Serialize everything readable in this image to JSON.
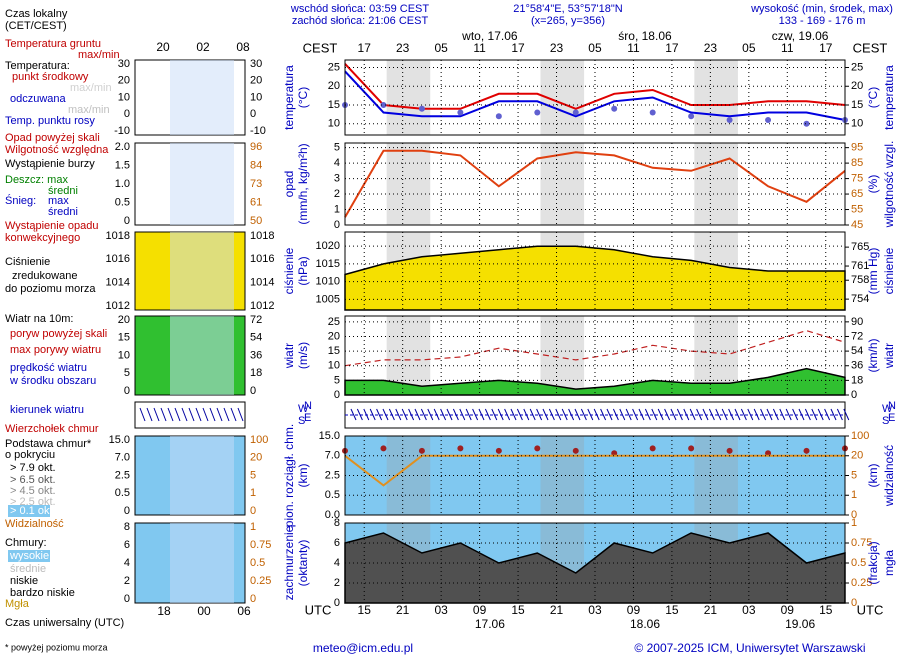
{
  "header": {
    "sunrise": "wschód słońca: 03:59 CEST",
    "sunset": "zachód słońca: 21:06 CEST",
    "coords": "21°58'4\"E, 53°57'18\"N",
    "grid": "(x=265, y=356)",
    "height_label": "wysokość (min, środek, max)",
    "heights": "133 - 169 - 176 m"
  },
  "top_axis": {
    "zone": "CEST",
    "ticks": [
      "17",
      "23",
      "05",
      "11",
      "17",
      "23",
      "05",
      "11",
      "17",
      "23",
      "05",
      "11",
      "17"
    ],
    "dates": [
      "wto, 17.06",
      "śro, 18.06",
      "czw, 19.06"
    ]
  },
  "bottom_axis": {
    "zone": "UTC",
    "ticks": [
      "15",
      "21",
      "03",
      "09",
      "15",
      "21",
      "03",
      "09",
      "15",
      "21",
      "03",
      "09",
      "15"
    ],
    "dates": [
      "17.06",
      "18.06",
      "19.06"
    ]
  },
  "x_hours": [
    0,
    6,
    12,
    18,
    24,
    30,
    36,
    42,
    48,
    54,
    60,
    66,
    72,
    78
  ],
  "panels": [
    {
      "left_label": [
        "temperatura",
        "(°C)"
      ],
      "right_label": [
        "(°C)",
        "temperatura"
      ],
      "bg": "#ffffff",
      "ylim": [
        7,
        27
      ],
      "yticks": [
        10,
        15,
        20,
        25
      ],
      "y2lim": [
        7,
        27
      ],
      "y2ticks": [
        10,
        15,
        20,
        25
      ],
      "series": [
        {
          "style": "line",
          "color": "#e00000",
          "values": [
            26,
            15,
            14,
            14,
            18,
            18,
            14,
            18,
            19,
            15,
            15,
            16,
            16,
            15
          ]
        },
        {
          "style": "line",
          "color": "#0000e0",
          "values": [
            24,
            13,
            12,
            12,
            16,
            16,
            12,
            16,
            17,
            13,
            12,
            13,
            13,
            11
          ]
        },
        {
          "style": "dots",
          "color": "#6060d0",
          "values": [
            15,
            15,
            14,
            13,
            12,
            13,
            13,
            14,
            13,
            12,
            11,
            11,
            10,
            11
          ]
        }
      ]
    },
    {
      "left_label": [
        "opad",
        "(mm/h, kg/m²h)"
      ],
      "right_label": [
        "(%)",
        "wilgotność wzgl."
      ],
      "bg": "#ffffff",
      "ylim": [
        0,
        5.3
      ],
      "yticks": [
        0,
        1,
        2,
        3,
        4,
        5
      ],
      "y2lim": [
        45,
        98
      ],
      "y2ticks": [
        45,
        55,
        65,
        75,
        85,
        95
      ],
      "series": [
        {
          "style": "line",
          "color": "#e04010",
          "axis": "y2",
          "values": [
            50,
            93,
            93,
            90,
            70,
            88,
            92,
            90,
            82,
            80,
            88,
            70,
            60,
            80
          ]
        }
      ]
    },
    {
      "left_label": [
        "ciśnienie",
        "(hPa)"
      ],
      "right_label": [
        "(mm Hg)",
        "ciśnienie"
      ],
      "bg": "#ffffff",
      "ylim": [
        1002,
        1024
      ],
      "yticks": [
        1005,
        1010,
        1015,
        1020
      ],
      "y2lim": [
        751.7,
        768.2
      ],
      "y2ticks": [
        754,
        758,
        761,
        765
      ],
      "series": [
        {
          "style": "area",
          "color": "#f5e000",
          "values": [
            1012,
            1015,
            1017,
            1018,
            1019,
            1020,
            1020,
            1019,
            1017,
            1016,
            1014,
            1013,
            1013,
            1013
          ]
        }
      ]
    },
    {
      "left_label": [
        "wiatr",
        "(m/s)"
      ],
      "right_label": [
        "(km/h)",
        "wiatr"
      ],
      "bg": "#ffffff",
      "ylim": [
        0,
        27
      ],
      "yticks": [
        0,
        5,
        10,
        15,
        20,
        25
      ],
      "y2lim": [
        0,
        97.2
      ],
      "y2ticks": [
        0,
        18,
        36,
        54,
        72,
        90
      ],
      "series": [
        {
          "style": "area",
          "color": "#30c030",
          "values": [
            5,
            5,
            3,
            4,
            5,
            4,
            2,
            3,
            5,
            4,
            4,
            6,
            9,
            6
          ]
        },
        {
          "style": "dash",
          "color": "#c02020",
          "values": [
            10,
            12,
            12,
            13,
            16,
            14,
            12,
            14,
            17,
            15,
            14,
            18,
            22,
            18
          ]
        }
      ]
    },
    {
      "left_label": [
        "pion. rozciągł. chm.",
        "(km)"
      ],
      "right_label": [
        "(km)",
        "widzialność"
      ],
      "bg": "#80c8f0",
      "scale": "piecewise",
      "ylim": [
        0,
        15
      ],
      "yticks": [
        {
          "value": 0,
          "label": "0.0"
        },
        0.5,
        2.5,
        {
          "value": 7,
          "label": "7.0"
        },
        {
          "value": 15,
          "label": "15.0"
        }
      ],
      "y2lim": [
        0,
        100
      ],
      "y2ticks": [
        0,
        1,
        5,
        20,
        100
      ],
      "series": [
        {
          "style": "dots",
          "color": "#a02020",
          "values": [
            9,
            10,
            9,
            10,
            9,
            10,
            9,
            8,
            10,
            10,
            9,
            8,
            9,
            10
          ]
        },
        {
          "style": "line",
          "color": "#e09020",
          "axis": "y2",
          "values": [
            20,
            3,
            20,
            20,
            20,
            20,
            20,
            20,
            20,
            20,
            20,
            20,
            20,
            20
          ]
        }
      ]
    },
    {
      "left_label": [
        "zachmurzenie",
        "(oktanty)"
      ],
      "right_label": [
        "(frakcja)",
        "mgła"
      ],
      "bg": "#80c8f0",
      "ylim": [
        0,
        8
      ],
      "yticks": [
        0,
        2,
        4,
        6,
        8
      ],
      "y2lim": [
        0,
        1
      ],
      "y2ticks": [
        0,
        0.25,
        0.5,
        0.75,
        1
      ],
      "series": [
        {
          "style": "area",
          "color": "#505050",
          "values": [
            6,
            7,
            5,
            6,
            4,
            5,
            3,
            6,
            5,
            7,
            6,
            7,
            4,
            5
          ]
        }
      ]
    }
  ],
  "wind_direction": {
    "letters": [
      "W",
      "N",
      "S",
      "E"
    ]
  },
  "mini": {
    "top": [
      "20",
      "02",
      "08"
    ],
    "bottom": [
      "18",
      "00",
      "06"
    ],
    "panels": [
      {
        "left": [
          "30",
          "20",
          "10",
          "0",
          "-10"
        ],
        "right": [
          "30",
          "20",
          "10",
          "0",
          "-10"
        ]
      },
      {
        "left": [
          "2.0",
          "1.5",
          "1.0",
          "0.5",
          "0"
        ],
        "right": [
          "96",
          "84",
          "73",
          "61",
          "50"
        ]
      },
      {
        "left": [
          "1018",
          "1016",
          "1014",
          "1012"
        ],
        "right": [
          "1018",
          "1016",
          "1014",
          "1012"
        ]
      },
      {
        "left": [
          "20",
          "15",
          "10",
          "5",
          "0"
        ],
        "right": [
          "72",
          "54",
          "36",
          "18",
          "0"
        ]
      },
      {
        "left": [
          "15.0",
          "7.0",
          "2.5",
          "0.5",
          "0"
        ],
        "right": [
          "100",
          "20",
          "5",
          "1",
          "0"
        ]
      },
      {
        "left": [
          "8",
          "6",
          "4",
          "2",
          "0"
        ],
        "right": [
          "1",
          "0.75",
          "0.5",
          "0.25",
          "0"
        ]
      }
    ]
  },
  "legend": [
    "Czas lokalny",
    "(CET/CEST)",
    "Temperatura gruntu",
    "max/min",
    "Temperatura:",
    "punkt środkowy",
    "max/min",
    "odczuwana",
    "max/min",
    "Temp. punktu rosy",
    "Opad powyżej skali",
    "Wilgotność względna",
    "Wystąpienie burzy",
    "Deszcz: max",
    "średni",
    "Śnieg:",
    "max",
    "średni",
    "Wystąpienie opadu",
    "konwekcyjnego",
    "Ciśnienie",
    "zredukowane",
    "do poziomu morza",
    "Wiatr na 10m:",
    "poryw powyżej skali",
    "max porywy wiatru",
    "prędkość wiatru",
    "w środku obszaru",
    "kierunek wiatru",
    "Wierzchołek chmur",
    "Podstawa chmur*",
    "o pokryciu",
    "> 7.9 okt.",
    "> 6.5 okt.",
    "> 4.5 okt.",
    "> 2.5 okt.",
    "> 0.1 okt.",
    "Widzialność",
    "Chmury:",
    "wysokie",
    "średnie",
    "niskie",
    "bardzo niskie",
    "Mgła",
    "Czas uniwersalny (UTC)",
    "* powyżej poziomu morza"
  ],
  "footer": {
    "email": "meteo@icm.edu.pl",
    "copyright": "© 2007-2025 ICM, Uniwersytet Warszawski"
  }
}
